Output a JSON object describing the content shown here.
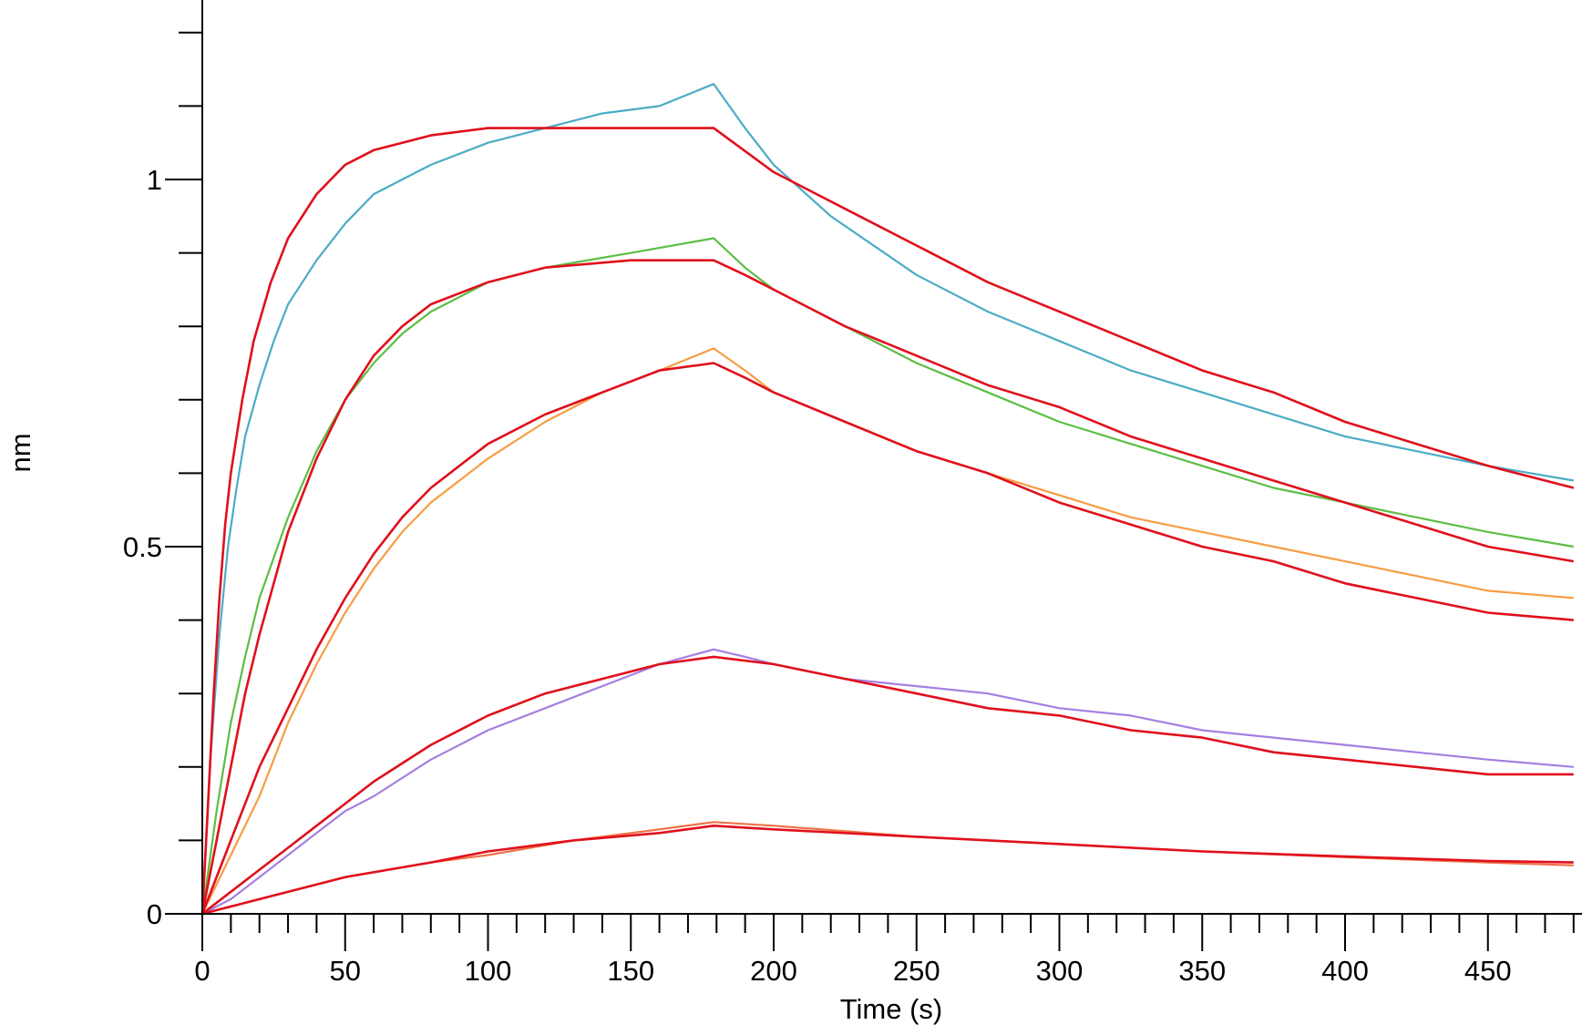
{
  "chart_data": {
    "type": "line",
    "title": "",
    "xlabel": "Time (s)",
    "ylabel": "nm",
    "xlim": [
      0,
      480
    ],
    "ylim": [
      0,
      1.2
    ],
    "x_ticks": [
      0,
      50,
      100,
      150,
      200,
      250,
      300,
      350,
      400,
      450
    ],
    "x_tick_labels": [
      "0",
      "50",
      "100",
      "150",
      "200",
      "250",
      "300",
      "350",
      "400",
      "450"
    ],
    "x_minor_step": 10,
    "y_ticks": [
      0,
      0.5,
      1
    ],
    "y_tick_labels": [
      "0",
      "0.5",
      "1"
    ],
    "y_minor_step": 0.1,
    "grid": false,
    "legend": "none",
    "series": [
      {
        "role": "measured",
        "color": "#4bacc6",
        "points": [
          [
            0,
            0
          ],
          [
            3,
            0.22
          ],
          [
            6,
            0.38
          ],
          [
            9,
            0.5
          ],
          [
            12,
            0.58
          ],
          [
            15,
            0.65
          ],
          [
            20,
            0.72
          ],
          [
            25,
            0.78
          ],
          [
            30,
            0.83
          ],
          [
            40,
            0.89
          ],
          [
            50,
            0.94
          ],
          [
            60,
            0.98
          ],
          [
            70,
            1.0
          ],
          [
            80,
            1.02
          ],
          [
            100,
            1.05
          ],
          [
            120,
            1.07
          ],
          [
            140,
            1.09
          ],
          [
            160,
            1.1
          ],
          [
            179,
            1.13
          ],
          [
            190,
            1.07
          ],
          [
            200,
            1.02
          ],
          [
            220,
            0.95
          ],
          [
            250,
            0.87
          ],
          [
            275,
            0.82
          ],
          [
            300,
            0.78
          ],
          [
            325,
            0.74
          ],
          [
            350,
            0.71
          ],
          [
            375,
            0.68
          ],
          [
            400,
            0.65
          ],
          [
            425,
            0.63
          ],
          [
            450,
            0.61
          ],
          [
            480,
            0.59
          ]
        ]
      },
      {
        "role": "measured",
        "color": "#5cbe45",
        "points": [
          [
            0,
            0
          ],
          [
            5,
            0.14
          ],
          [
            10,
            0.26
          ],
          [
            15,
            0.35
          ],
          [
            20,
            0.43
          ],
          [
            30,
            0.54
          ],
          [
            40,
            0.63
          ],
          [
            50,
            0.7
          ],
          [
            60,
            0.75
          ],
          [
            70,
            0.79
          ],
          [
            80,
            0.82
          ],
          [
            100,
            0.86
          ],
          [
            120,
            0.88
          ],
          [
            150,
            0.9
          ],
          [
            179,
            0.92
          ],
          [
            190,
            0.88
          ],
          [
            200,
            0.85
          ],
          [
            225,
            0.8
          ],
          [
            250,
            0.75
          ],
          [
            275,
            0.71
          ],
          [
            300,
            0.67
          ],
          [
            325,
            0.64
          ],
          [
            350,
            0.61
          ],
          [
            375,
            0.58
          ],
          [
            400,
            0.56
          ],
          [
            425,
            0.54
          ],
          [
            450,
            0.52
          ],
          [
            480,
            0.5
          ]
        ]
      },
      {
        "role": "measured",
        "color": "#f79d43",
        "points": [
          [
            0,
            0
          ],
          [
            10,
            0.08
          ],
          [
            20,
            0.16
          ],
          [
            30,
            0.26
          ],
          [
            40,
            0.34
          ],
          [
            50,
            0.41
          ],
          [
            60,
            0.47
          ],
          [
            70,
            0.52
          ],
          [
            80,
            0.56
          ],
          [
            90,
            0.59
          ],
          [
            100,
            0.62
          ],
          [
            120,
            0.67
          ],
          [
            140,
            0.71
          ],
          [
            160,
            0.74
          ],
          [
            179,
            0.77
          ],
          [
            190,
            0.74
          ],
          [
            200,
            0.71
          ],
          [
            225,
            0.67
          ],
          [
            250,
            0.63
          ],
          [
            275,
            0.6
          ],
          [
            300,
            0.57
          ],
          [
            325,
            0.54
          ],
          [
            350,
            0.52
          ],
          [
            375,
            0.5
          ],
          [
            400,
            0.48
          ],
          [
            425,
            0.46
          ],
          [
            450,
            0.44
          ],
          [
            480,
            0.43
          ]
        ]
      },
      {
        "role": "measured",
        "color": "#a57fe0",
        "points": [
          [
            0,
            0
          ],
          [
            10,
            0.02
          ],
          [
            20,
            0.05
          ],
          [
            30,
            0.08
          ],
          [
            40,
            0.11
          ],
          [
            50,
            0.14
          ],
          [
            60,
            0.16
          ],
          [
            80,
            0.21
          ],
          [
            100,
            0.25
          ],
          [
            120,
            0.28
          ],
          [
            140,
            0.31
          ],
          [
            160,
            0.34
          ],
          [
            179,
            0.36
          ],
          [
            190,
            0.35
          ],
          [
            200,
            0.34
          ],
          [
            225,
            0.32
          ],
          [
            250,
            0.31
          ],
          [
            275,
            0.3
          ],
          [
            300,
            0.28
          ],
          [
            325,
            0.27
          ],
          [
            350,
            0.25
          ],
          [
            375,
            0.24
          ],
          [
            400,
            0.23
          ],
          [
            425,
            0.22
          ],
          [
            450,
            0.21
          ],
          [
            480,
            0.2
          ]
        ]
      },
      {
        "role": "measured",
        "color": "#f07048",
        "points": [
          [
            0,
            0
          ],
          [
            20,
            0.02
          ],
          [
            50,
            0.05
          ],
          [
            80,
            0.07
          ],
          [
            100,
            0.08
          ],
          [
            130,
            0.1
          ],
          [
            160,
            0.115
          ],
          [
            179,
            0.125
          ],
          [
            200,
            0.12
          ],
          [
            250,
            0.105
          ],
          [
            300,
            0.095
          ],
          [
            350,
            0.085
          ],
          [
            400,
            0.077
          ],
          [
            450,
            0.07
          ],
          [
            480,
            0.066
          ]
        ]
      },
      {
        "role": "fit",
        "color": "#e0101c",
        "points": [
          [
            0,
            0
          ],
          [
            2,
            0.15
          ],
          [
            4,
            0.3
          ],
          [
            6,
            0.43
          ],
          [
            8,
            0.53
          ],
          [
            10,
            0.6
          ],
          [
            14,
            0.7
          ],
          [
            18,
            0.78
          ],
          [
            24,
            0.86
          ],
          [
            30,
            0.92
          ],
          [
            40,
            0.98
          ],
          [
            50,
            1.02
          ],
          [
            60,
            1.04
          ],
          [
            70,
            1.05
          ],
          [
            80,
            1.06
          ],
          [
            100,
            1.07
          ],
          [
            179,
            1.07
          ],
          [
            200,
            1.01
          ],
          [
            225,
            0.96
          ],
          [
            250,
            0.91
          ],
          [
            275,
            0.86
          ],
          [
            300,
            0.82
          ],
          [
            325,
            0.78
          ],
          [
            350,
            0.74
          ],
          [
            375,
            0.71
          ],
          [
            400,
            0.67
          ],
          [
            425,
            0.64
          ],
          [
            450,
            0.61
          ],
          [
            480,
            0.58
          ]
        ]
      },
      {
        "role": "fit",
        "color": "#e0101c",
        "points": [
          [
            0,
            0
          ],
          [
            5,
            0.1
          ],
          [
            10,
            0.2
          ],
          [
            15,
            0.3
          ],
          [
            20,
            0.38
          ],
          [
            30,
            0.52
          ],
          [
            40,
            0.62
          ],
          [
            50,
            0.7
          ],
          [
            60,
            0.76
          ],
          [
            70,
            0.8
          ],
          [
            80,
            0.83
          ],
          [
            100,
            0.86
          ],
          [
            120,
            0.88
          ],
          [
            150,
            0.89
          ],
          [
            179,
            0.89
          ],
          [
            190,
            0.87
          ],
          [
            200,
            0.85
          ],
          [
            225,
            0.8
          ],
          [
            250,
            0.76
          ],
          [
            275,
            0.72
          ],
          [
            300,
            0.69
          ],
          [
            325,
            0.65
          ],
          [
            350,
            0.62
          ],
          [
            375,
            0.59
          ],
          [
            400,
            0.56
          ],
          [
            425,
            0.53
          ],
          [
            450,
            0.5
          ],
          [
            480,
            0.48
          ]
        ]
      },
      {
        "role": "fit",
        "color": "#e0101c",
        "points": [
          [
            0,
            0
          ],
          [
            10,
            0.1
          ],
          [
            20,
            0.2
          ],
          [
            30,
            0.28
          ],
          [
            40,
            0.36
          ],
          [
            50,
            0.43
          ],
          [
            60,
            0.49
          ],
          [
            70,
            0.54
          ],
          [
            80,
            0.58
          ],
          [
            90,
            0.61
          ],
          [
            100,
            0.64
          ],
          [
            120,
            0.68
          ],
          [
            140,
            0.71
          ],
          [
            160,
            0.74
          ],
          [
            179,
            0.75
          ],
          [
            190,
            0.73
          ],
          [
            200,
            0.71
          ],
          [
            225,
            0.67
          ],
          [
            250,
            0.63
          ],
          [
            275,
            0.6
          ],
          [
            300,
            0.56
          ],
          [
            325,
            0.53
          ],
          [
            350,
            0.5
          ],
          [
            375,
            0.48
          ],
          [
            400,
            0.45
          ],
          [
            425,
            0.43
          ],
          [
            450,
            0.41
          ],
          [
            480,
            0.4
          ]
        ]
      },
      {
        "role": "fit",
        "color": "#e0101c",
        "points": [
          [
            0,
            0
          ],
          [
            10,
            0.03
          ],
          [
            20,
            0.06
          ],
          [
            30,
            0.09
          ],
          [
            40,
            0.12
          ],
          [
            50,
            0.15
          ],
          [
            60,
            0.18
          ],
          [
            80,
            0.23
          ],
          [
            100,
            0.27
          ],
          [
            120,
            0.3
          ],
          [
            140,
            0.32
          ],
          [
            160,
            0.34
          ],
          [
            179,
            0.35
          ],
          [
            200,
            0.34
          ],
          [
            225,
            0.32
          ],
          [
            250,
            0.3
          ],
          [
            275,
            0.28
          ],
          [
            300,
            0.27
          ],
          [
            325,
            0.25
          ],
          [
            350,
            0.24
          ],
          [
            375,
            0.22
          ],
          [
            400,
            0.21
          ],
          [
            425,
            0.2
          ],
          [
            450,
            0.19
          ],
          [
            480,
            0.19
          ]
        ]
      },
      {
        "role": "fit",
        "color": "#e0101c",
        "points": [
          [
            0,
            0
          ],
          [
            20,
            0.02
          ],
          [
            50,
            0.05
          ],
          [
            80,
            0.07
          ],
          [
            100,
            0.085
          ],
          [
            130,
            0.1
          ],
          [
            160,
            0.11
          ],
          [
            179,
            0.12
          ],
          [
            200,
            0.115
          ],
          [
            250,
            0.105
          ],
          [
            300,
            0.095
          ],
          [
            350,
            0.085
          ],
          [
            400,
            0.078
          ],
          [
            450,
            0.072
          ],
          [
            480,
            0.07
          ]
        ]
      }
    ]
  }
}
